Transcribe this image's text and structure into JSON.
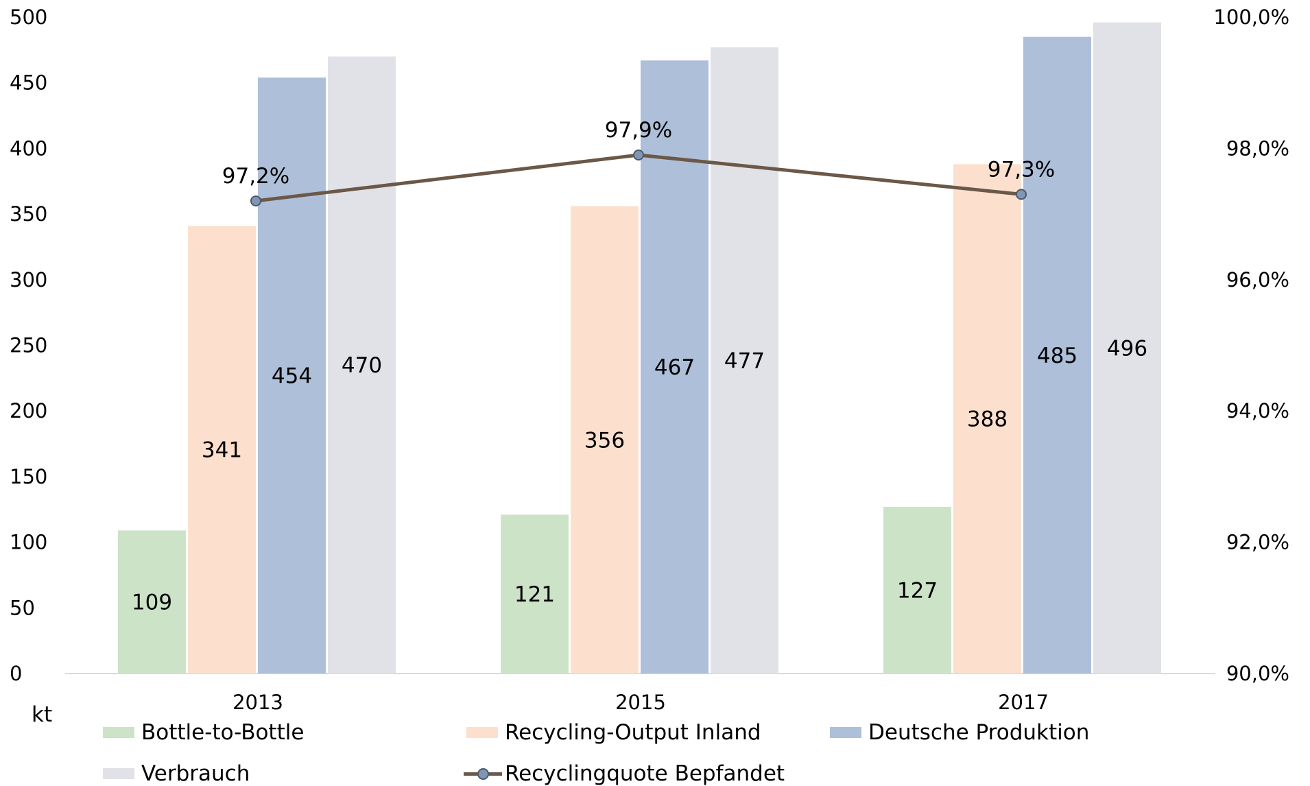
{
  "chart_data": {
    "type": "bar",
    "categories": [
      "2013",
      "2015",
      "2017"
    ],
    "series": [
      {
        "name": "Bottle-to-Bottle",
        "values": [
          109,
          121,
          127
        ],
        "color": "#cde3c8"
      },
      {
        "name": "Recycling-Output Inland",
        "values": [
          341,
          356,
          388
        ],
        "color": "#fce0cd"
      },
      {
        "name": "Deutsche Produktion",
        "values": [
          454,
          467,
          485
        ],
        "color": "#aebfd9"
      },
      {
        "name": "Verbrauch",
        "values": [
          470,
          477,
          496
        ],
        "color": "#e1e1e8"
      }
    ],
    "line_series": {
      "name": "Recyclingquote Bepfandet",
      "values": [
        97.2,
        97.9,
        97.3
      ],
      "labels": [
        "97,2%",
        "97,9%",
        "97,3%"
      ],
      "color": "#6b5848",
      "marker_color": "#7f97b5",
      "axis": "right"
    },
    "ylabel": "kt",
    "ylim": [
      0,
      500
    ],
    "y_ticks": [
      "0",
      "50",
      "100",
      "150",
      "200",
      "250",
      "300",
      "350",
      "400",
      "450",
      "500"
    ],
    "y2lim": [
      90,
      100
    ],
    "y2_ticks": [
      "90,0%",
      "92,0%",
      "94,0%",
      "96,0%",
      "98,0%",
      "100,0%"
    ],
    "grid": false,
    "legend_position": "bottom"
  }
}
